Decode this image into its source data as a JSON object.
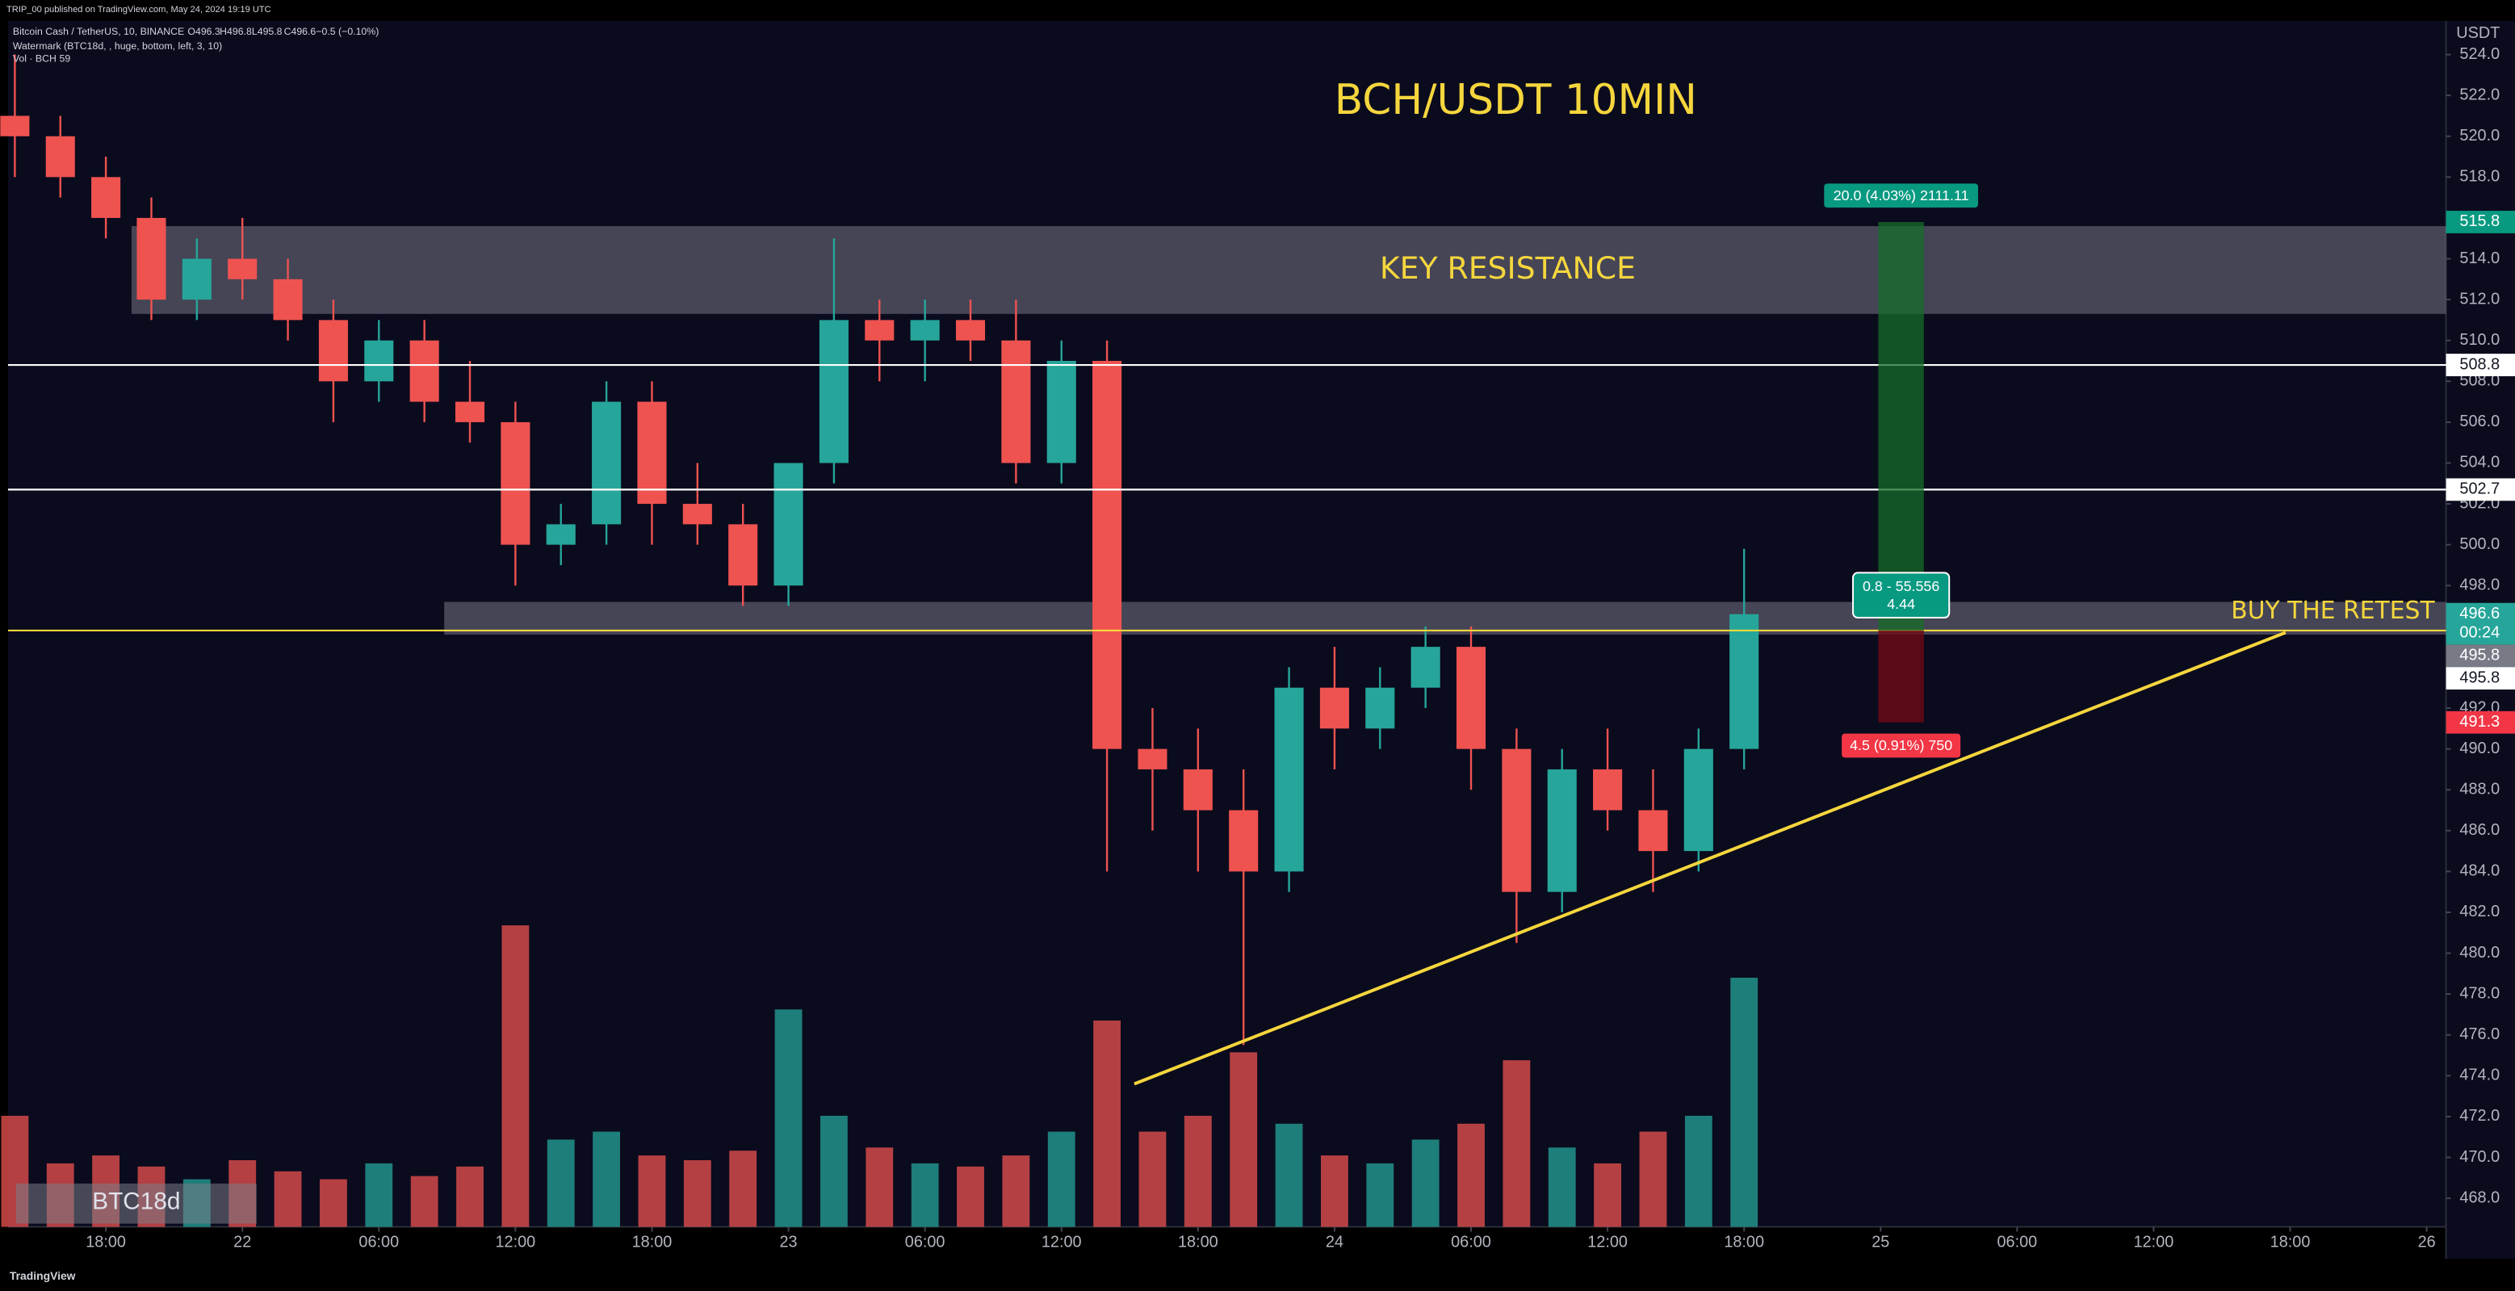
{
  "page": {
    "publisher": "TRIP_00 published on TradingView.com, May 24, 2024 19:19 UTC",
    "footer": "TradingView"
  },
  "chart_data": {
    "type": "candlestick",
    "title": "BCH/USDT 10MIN",
    "symbol": "Bitcoin Cash / TetherUS, 10, BINANCE",
    "ohlc": [
      "O496.3",
      "H496.8",
      "L495.8",
      "C496.6",
      "−0.5 (−0.10%)"
    ],
    "indicators": [
      "Watermark (BTC18d, , huge, bottom, left, 3, 10)",
      "Vol · BCH",
      "59"
    ],
    "currency": "USDT",
    "watermark": "BTC18d",
    "xlim": [
      13.7,
      120.85
    ],
    "xticks": [
      {
        "value": 18,
        "label": "18:00"
      },
      {
        "value": 24,
        "label": "22"
      },
      {
        "value": 30,
        "label": "06:00"
      },
      {
        "value": 36,
        "label": "12:00"
      },
      {
        "value": 42,
        "label": "18:00"
      },
      {
        "value": 48,
        "label": "23"
      },
      {
        "value": 54,
        "label": "06:00"
      },
      {
        "value": 60,
        "label": "12:00"
      },
      {
        "value": 66,
        "label": "18:00"
      },
      {
        "value": 72,
        "label": "24"
      },
      {
        "value": 78,
        "label": "06:00"
      },
      {
        "value": 84,
        "label": "12:00"
      },
      {
        "value": 90,
        "label": "18:00"
      },
      {
        "value": 96,
        "label": "25"
      },
      {
        "value": 102,
        "label": "06:00"
      },
      {
        "value": 108,
        "label": "12:00"
      },
      {
        "value": 114,
        "label": "18:00"
      },
      {
        "value": 120,
        "label": "26"
      }
    ],
    "ylim": [
      466.6,
      525.65
    ],
    "yticks": [
      {
        "value": 524,
        "label": "524.0"
      },
      {
        "value": 522,
        "label": "522.0"
      },
      {
        "value": 520,
        "label": "520.0"
      },
      {
        "value": 518,
        "label": "518.0"
      },
      {
        "value": 514,
        "label": "514.0"
      },
      {
        "value": 512,
        "label": "512.0"
      },
      {
        "value": 510,
        "label": "510.0"
      },
      {
        "value": 508,
        "label": "508.0"
      },
      {
        "value": 506,
        "label": "506.0"
      },
      {
        "value": 504,
        "label": "504.0"
      },
      {
        "value": 502,
        "label": "502.0"
      },
      {
        "value": 500,
        "label": "500.0"
      },
      {
        "value": 498,
        "label": "498.0"
      },
      {
        "value": 492,
        "label": "492.0"
      },
      {
        "value": 490,
        "label": "490.0"
      },
      {
        "value": 488,
        "label": "488.0"
      },
      {
        "value": 486,
        "label": "486.0"
      },
      {
        "value": 484,
        "label": "484.0"
      },
      {
        "value": 482,
        "label": "482.0"
      },
      {
        "value": 480,
        "label": "480.0"
      },
      {
        "value": 478,
        "label": "478.0"
      },
      {
        "value": 476,
        "label": "476.0"
      },
      {
        "value": 474,
        "label": "474.0"
      },
      {
        "value": 472,
        "label": "472.0"
      },
      {
        "value": 470,
        "label": "470.0"
      },
      {
        "value": 468,
        "label": "468.0"
      }
    ],
    "grid": false,
    "up_color": "#26a69a",
    "down_color": "#ef5350",
    "x": [
      14,
      16,
      18,
      20,
      22,
      24,
      26,
      28,
      30,
      32,
      34,
      36,
      38,
      40,
      42,
      44,
      46,
      48,
      50,
      52,
      54,
      56,
      58,
      60,
      62,
      64,
      66,
      68,
      70,
      72,
      74,
      76,
      78,
      80,
      82,
      84,
      86,
      88,
      90
    ],
    "open": [
      521,
      520,
      518,
      516,
      512,
      514,
      513,
      511,
      508,
      510,
      507,
      506,
      500,
      501,
      507,
      502,
      501,
      498,
      504,
      511,
      510,
      511,
      510,
      504,
      509,
      490,
      489,
      487,
      484,
      493,
      491,
      493,
      495,
      490,
      483,
      489,
      487,
      485,
      490
    ],
    "high": [
      524,
      521,
      519,
      517,
      515,
      516,
      514,
      512,
      511,
      511,
      509,
      507,
      502,
      508,
      508,
      504,
      502,
      504,
      515,
      512,
      512,
      512,
      512,
      510,
      510,
      492,
      491,
      489,
      494,
      495,
      494,
      496,
      496,
      491,
      490,
      491,
      489,
      491,
      499.8
    ],
    "low": [
      518,
      517,
      515,
      511,
      511,
      512,
      510,
      506,
      507,
      506,
      505,
      498,
      499,
      500,
      500,
      500,
      497,
      497,
      503,
      508,
      508,
      509,
      503,
      503,
      484,
      486,
      484,
      475.5,
      483,
      489,
      490,
      492,
      488,
      480.5,
      482,
      486,
      483,
      484,
      489
    ],
    "close": [
      520,
      518,
      516,
      512,
      514,
      513,
      511,
      508,
      510,
      507,
      506,
      500,
      501,
      507,
      502,
      501,
      498,
      504,
      511,
      510,
      511,
      510,
      504,
      509,
      490,
      489,
      487,
      484,
      493,
      491,
      493,
      495,
      490,
      483,
      489,
      487,
      485,
      490,
      496.6
    ],
    "volume": [
      70,
      40,
      45,
      38,
      30,
      42,
      35,
      30,
      40,
      32,
      38,
      190,
      55,
      60,
      45,
      42,
      48,
      137,
      70,
      50,
      40,
      38,
      45,
      60,
      130,
      60,
      70,
      110,
      65,
      45,
      40,
      55,
      65,
      105,
      50,
      40,
      60,
      70,
      157
    ],
    "levels": [
      {
        "value": 508.8,
        "color": "#ffffff"
      },
      {
        "value": 502.7,
        "color": "#ffffff"
      },
      {
        "value": 495.8,
        "color": "#f5d63d"
      }
    ],
    "zones": [
      {
        "label": "KEY RESISTANCE",
        "top": 515.6,
        "bottom": 511.3,
        "x_start": 19.13
      },
      {
        "label": "BUY THE RETEST",
        "top": 497.2,
        "bottom": 495.6,
        "x_start": 32.87
      }
    ],
    "trendline": {
      "x": [
        63.2,
        113.8
      ],
      "price": [
        473.6,
        495.7
      ],
      "color": "#f5d63d"
    },
    "position": {
      "x": [
        95.9,
        97.9
      ],
      "target": 515.8,
      "entry": 495.8,
      "stop": 491.3,
      "target_label": "20.0 (4.03%) 2111.11",
      "ratio_label": "0.8 - 55.556",
      "ratio_sub": "4.44",
      "stop_label": "4.5 (0.91%) 750"
    },
    "price_tags": [
      {
        "value": 515.8,
        "bg": "#089981",
        "fg": "#ffffff"
      },
      {
        "value": 508.8,
        "bg": "#ffffff",
        "fg": "#131722"
      },
      {
        "value": 502.7,
        "bg": "#ffffff",
        "fg": "#131722"
      },
      {
        "value": 496.6,
        "bg": "#26a69a",
        "fg": "#ffffff",
        "countdown": "00:24"
      },
      {
        "value": 495.8,
        "bg": "#787b86",
        "fg": "#ffffff"
      },
      {
        "value": 495.8,
        "bg": "#ffffff",
        "fg": "#131722"
      },
      {
        "value": 491.3,
        "bg": "#f23645",
        "fg": "#ffffff"
      }
    ]
  }
}
